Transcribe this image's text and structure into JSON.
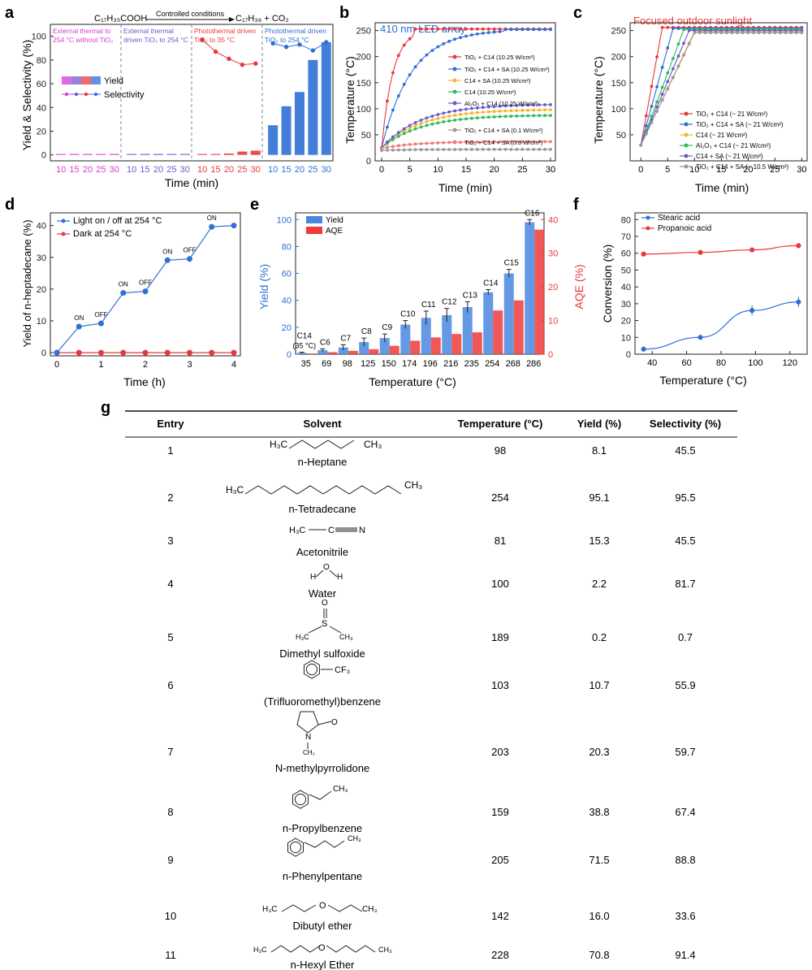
{
  "panels": {
    "a": {
      "letter": "a",
      "ylabel": "Yield & Selectivity (%)",
      "xlabel": "Time (min)",
      "reaction_reactant": "C₁₇H₃₅COOH",
      "reaction_conditions": "Controlled conditions",
      "reaction_products": "C₁₇H₃₆  +  CO₂",
      "group_titles": [
        [
          "External thermal to",
          "254 °C without TiO₂"
        ],
        [
          "External thermal",
          "driven TiO₂ to 254 °C"
        ],
        [
          "Photothermal driven",
          "TiO₂ to 35 °C"
        ],
        [
          "Photothermal driven",
          "TiO₂ to 254 °C"
        ]
      ],
      "legend_yield": "Yield",
      "legend_selectivity": "Selectivity"
    },
    "b": {
      "letter": "b",
      "title": "410 nm LED array",
      "xlabel": "Time (min)",
      "ylabel": "Temperature (°C)"
    },
    "c": {
      "letter": "c",
      "title": "Focused outdoor sunlight",
      "xlabel": "Time (min)",
      "ylabel": "Temperature (°C)"
    },
    "d": {
      "letter": "d",
      "xlabel": "Time (h)",
      "ylabel": "Yield of n-heptadecane (%)"
    },
    "e": {
      "letter": "e",
      "xlabel": "Temperature (°C)",
      "ylabel_left": "Yield (%)",
      "ylabel_right": "AQE (%)"
    },
    "f": {
      "letter": "f",
      "xlabel": "Temperature (°C)",
      "ylabel": "Conversion (%)"
    },
    "g": {
      "letter": "g"
    }
  },
  "colors": {
    "blue": "#2f6fd6",
    "red": "#e8383c",
    "magenta": "#d63ad6",
    "purple": "#6a5acd",
    "accent_title": "#1e6fe0"
  },
  "chart_data": [
    {
      "panel": "a",
      "type": "bar",
      "groups": [
        {
          "x": [
            10,
            15,
            20,
            25,
            30
          ],
          "yield": [
            0,
            0,
            0,
            0,
            0
          ],
          "selectivity": [
            null,
            null,
            null,
            null,
            null
          ],
          "color": "#d63ad6"
        },
        {
          "x": [
            10,
            15,
            20,
            25,
            30
          ],
          "yield": [
            0,
            0,
            0,
            0,
            0
          ],
          "selectivity": [
            null,
            null,
            null,
            null,
            null
          ],
          "color": "#6a5acd"
        },
        {
          "x": [
            10,
            15,
            20,
            25,
            30
          ],
          "yield": [
            0.3,
            0.7,
            1.2,
            2.8,
            3.6
          ],
          "selectivity": [
            97,
            87,
            81,
            76,
            77
          ],
          "color": "#e8383c"
        },
        {
          "x": [
            10,
            15,
            20,
            25,
            30
          ],
          "yield": [
            25,
            41,
            53,
            80,
            95
          ],
          "selectivity": [
            94,
            91,
            93,
            88,
            95
          ],
          "color": "#2f6fd6"
        }
      ],
      "ylim": [
        -5,
        110
      ],
      "yticks": [
        0,
        20,
        40,
        60,
        80,
        100
      ]
    },
    {
      "panel": "b",
      "type": "line",
      "xlim": [
        0,
        30
      ],
      "ylim": [
        0,
        265
      ],
      "xticks": [
        0,
        5,
        10,
        15,
        20,
        25,
        30
      ],
      "yticks": [
        0,
        50,
        100,
        150,
        200,
        250
      ],
      "series": [
        {
          "name": "TiO₂ + C14 (10.25 W/cm²)",
          "color": "#e8383c",
          "start": 25,
          "end": 253,
          "tau": 2.0,
          "plateau_at": 6
        },
        {
          "name": "TiO₂ + C14 + SA (10.25 W/cm²)",
          "color": "#2f6fd6",
          "start": 25,
          "end": 252,
          "tau": 5.2,
          "plateau_at": 22
        },
        {
          "name": "C14 + SA (10.25 W/cm²)",
          "color": "#f2b632",
          "start": 25,
          "end": 99,
          "tau": 7
        },
        {
          "name": "C14 (10.25 W/cm²)",
          "color": "#2ebd5a",
          "start": 25,
          "end": 88,
          "tau": 7
        },
        {
          "name": "Al₂O₃ + C14 (10.25 W/cm²)",
          "color": "#6a5acd",
          "start": 25,
          "end": 109,
          "tau": 7
        },
        {
          "name": "TiO₂ + C14 + SA (0.1 W/cm²)",
          "color": "#999999",
          "start": 20,
          "end": 22,
          "tau": 5
        },
        {
          "name": "TiO₂ + C14 + SA (0.8 W/cm²)",
          "color": "#f07a7a",
          "start": 24,
          "end": 37,
          "tau": 6
        }
      ]
    },
    {
      "panel": "c",
      "type": "line",
      "xlim": [
        -2,
        31
      ],
      "ylim": [
        0,
        265
      ],
      "xticks": [
        0,
        5,
        10,
        15,
        20,
        25,
        30
      ],
      "yticks": [
        50,
        100,
        150,
        200,
        250
      ],
      "series": [
        {
          "name": "TiO₂ + C14 (~ 21 W/cm²)",
          "color": "#e8383c",
          "start": 30,
          "end": 256,
          "reach": 4
        },
        {
          "name": "TiO₂ + C14 + SA (~ 21 W/cm²)",
          "color": "#2f6fd6",
          "start": 30,
          "end": 254,
          "reach": 6
        },
        {
          "name": "C14 (~ 21 W/cm²)",
          "color": "#f2b632",
          "start": 30,
          "end": 248,
          "reach": 10
        },
        {
          "name": "Al₂O₃ + C14 (~ 21 W/cm²)",
          "color": "#2ebd5a",
          "start": 30,
          "end": 252,
          "reach": 8
        },
        {
          "name": "C14 + SA (~ 21 W/cm²)",
          "color": "#6a5acd",
          "start": 30,
          "end": 250,
          "reach": 9
        },
        {
          "name": "TiO₂ + C14 + SA (~ 10.5 W/cm²)",
          "color": "#999999",
          "start": 30,
          "end": 246,
          "reach": 10
        }
      ]
    },
    {
      "panel": "d",
      "type": "line",
      "xlim": [
        0,
        4
      ],
      "ylim": [
        -1,
        44
      ],
      "xticks": [
        0,
        1,
        2,
        3,
        4
      ],
      "yticks": [
        0,
        10,
        20,
        30,
        40
      ],
      "series": [
        {
          "name": "Light on / off at 254 °C",
          "color": "#2f6fd6",
          "x": [
            0,
            0.5,
            1,
            1.5,
            2,
            2.5,
            3,
            3.5,
            4
          ],
          "y": [
            0,
            8.2,
            9.2,
            18.8,
            19.3,
            29.1,
            29.5,
            39.6,
            40.0
          ]
        },
        {
          "name": "Dark at 254 °C",
          "color": "#e8383c",
          "x": [
            0,
            0.5,
            1,
            1.5,
            2,
            2.5,
            3,
            3.5,
            4
          ],
          "y": [
            0,
            0,
            0,
            0,
            0,
            0,
            0,
            0,
            0
          ]
        }
      ],
      "annotations": [
        {
          "x": 0.5,
          "y": 8.2,
          "text": "ON"
        },
        {
          "x": 1,
          "y": 9.2,
          "text": "OFF"
        },
        {
          "x": 1.5,
          "y": 18.8,
          "text": "ON"
        },
        {
          "x": 2,
          "y": 19.3,
          "text": "OFF"
        },
        {
          "x": 2.5,
          "y": 29.1,
          "text": "ON"
        },
        {
          "x": 3,
          "y": 29.5,
          "text": "OFF"
        },
        {
          "x": 3.5,
          "y": 39.6,
          "text": "ON"
        }
      ]
    },
    {
      "panel": "e",
      "type": "bar",
      "categories": [
        "35",
        "69",
        "98",
        "125",
        "150",
        "174",
        "196",
        "216",
        "235",
        "254",
        "268",
        "286"
      ],
      "labels": [
        "C14",
        "C6",
        "C7",
        "C8",
        "C9",
        "C10",
        "C11",
        "C12",
        "C13",
        "C14",
        "C15",
        "C16"
      ],
      "first_label_note": "(35 °C)",
      "series": [
        {
          "name": "Yield",
          "axis": "left",
          "color": "#4a86e0",
          "values": [
            1,
            3,
            5,
            9,
            12,
            22,
            27,
            29,
            35,
            46,
            60,
            98
          ],
          "errors": [
            0.5,
            1,
            2,
            3,
            3,
            3,
            5,
            5,
            4,
            2,
            3,
            2
          ]
        },
        {
          "name": "AQE",
          "axis": "right",
          "color": "#ee3a3a",
          "values": [
            0.2,
            0.6,
            1,
            1.5,
            2.5,
            4,
            5,
            6,
            6.5,
            13,
            16,
            37
          ]
        }
      ],
      "ylim_left": [
        0,
        105
      ],
      "yticks_left": [
        0,
        20,
        40,
        60,
        80,
        100
      ],
      "ylim_right": [
        0,
        42
      ],
      "yticks_right": [
        0,
        10,
        20,
        30,
        40
      ]
    },
    {
      "panel": "f",
      "type": "line",
      "xlim": [
        30,
        130
      ],
      "ylim": [
        0,
        84
      ],
      "xticks": [
        40,
        60,
        80,
        100,
        120
      ],
      "yticks": [
        0,
        10,
        20,
        30,
        40,
        50,
        60,
        70,
        80
      ],
      "series": [
        {
          "name": "Stearic acid",
          "color": "#2f6fd6",
          "x": [
            35,
            68,
            98,
            125
          ],
          "y": [
            3,
            10,
            26,
            31
          ],
          "errors": [
            0.3,
            0.5,
            3,
            3
          ]
        },
        {
          "name": "Propanoic acid",
          "color": "#e8383c",
          "x": [
            35,
            68,
            98,
            125
          ],
          "y": [
            59.5,
            60.5,
            62,
            64.5
          ],
          "errors": [
            0.5,
            1,
            0.5,
            1
          ]
        }
      ]
    },
    {
      "panel": "g",
      "type": "table",
      "headers": [
        "Entry",
        "Solvent",
        "Temperature (°C)",
        "Yield (%)",
        "Selectivity (%)"
      ],
      "rows": [
        {
          "entry": "1",
          "solvent": "n-Heptane",
          "temperature": "98",
          "yield": "8.1",
          "selectivity": "45.5",
          "structure": "heptane"
        },
        {
          "entry": "2",
          "solvent": "n-Tetradecane",
          "temperature": "254",
          "yield": "95.1",
          "selectivity": "95.5",
          "structure": "tetradecane"
        },
        {
          "entry": "3",
          "solvent": "Acetonitrile",
          "temperature": "81",
          "yield": "15.3",
          "selectivity": "45.5",
          "structure": "acetonitrile"
        },
        {
          "entry": "4",
          "solvent": "Water",
          "temperature": "100",
          "yield": "2.2",
          "selectivity": "81.7",
          "structure": "water"
        },
        {
          "entry": "5",
          "solvent": "Dimethyl sulfoxide",
          "temperature": "189",
          "yield": "0.2",
          "selectivity": "0.7",
          "structure": "dmso"
        },
        {
          "entry": "6",
          "solvent": "(Trifluoromethyl)benzene",
          "temperature": "103",
          "yield": "10.7",
          "selectivity": "55.9",
          "structure": "cf3benzene"
        },
        {
          "entry": "7",
          "solvent": "N-methylpyrrolidone",
          "temperature": "203",
          "yield": "20.3",
          "selectivity": "59.7",
          "structure": "nmp"
        },
        {
          "entry": "8",
          "solvent": "n-Propylbenzene",
          "temperature": "159",
          "yield": "38.8",
          "selectivity": "67.4",
          "structure": "propylbenzene"
        },
        {
          "entry": "9",
          "solvent": "n-Phenylpentane",
          "temperature": "205",
          "yield": "71.5",
          "selectivity": "88.8",
          "structure": "phenylpentane"
        },
        {
          "entry": "10",
          "solvent": "Dibutyl ether",
          "temperature": "142",
          "yield": "16.0",
          "selectivity": "33.6",
          "structure": "dibutylether"
        },
        {
          "entry": "11",
          "solvent": "n-Hexyl Ether",
          "temperature": "228",
          "yield": "70.8",
          "selectivity": "91.4",
          "structure": "hexylether"
        }
      ]
    }
  ]
}
